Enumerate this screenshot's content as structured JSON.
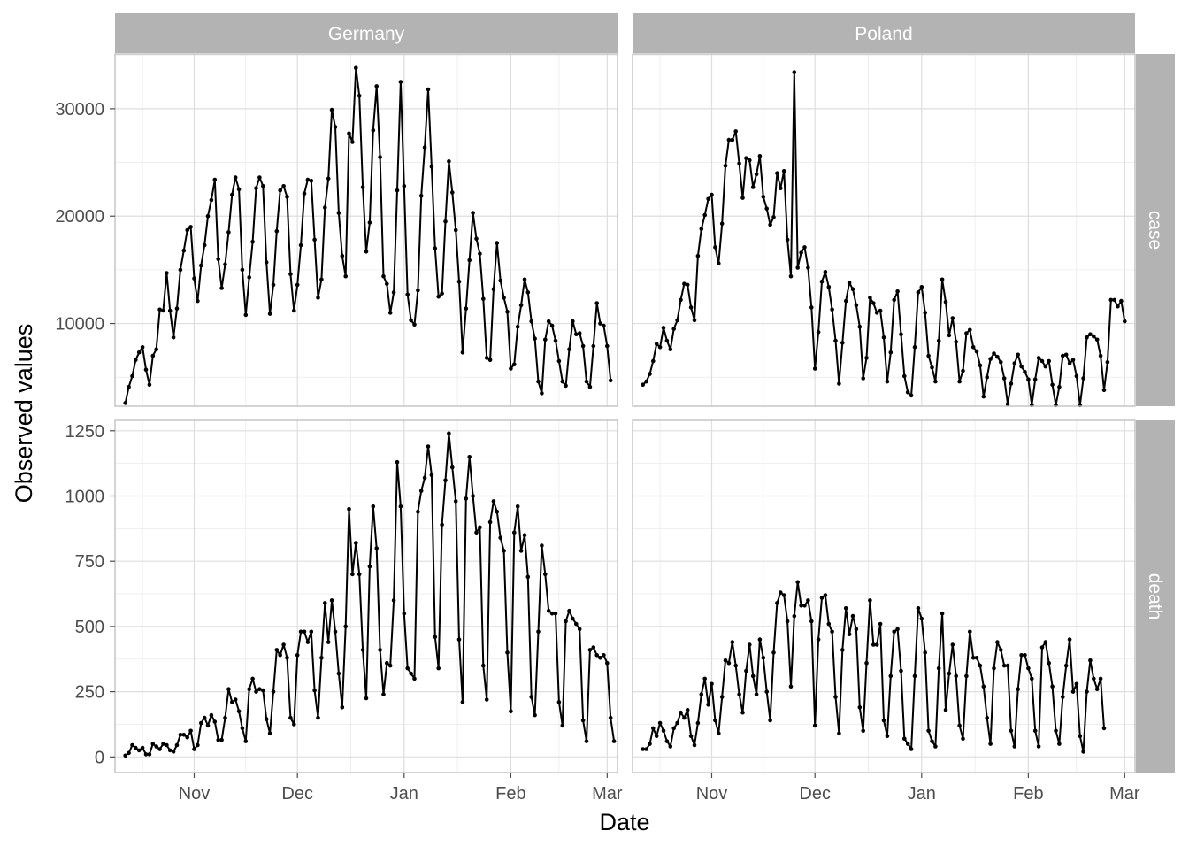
{
  "chart_data": {
    "type": "line",
    "xlabel": "Date",
    "ylabel": "Observed values",
    "facet_cols": [
      "Germany",
      "Poland"
    ],
    "facet_rows": [
      "case",
      "death"
    ],
    "x_start": "2020-10-12",
    "x_ticks": [
      {
        "label": "Nov",
        "date": "2020-11-01"
      },
      {
        "label": "Dec",
        "date": "2020-12-01"
      },
      {
        "label": "Jan",
        "date": "2021-01-01"
      },
      {
        "label": "Feb",
        "date": "2021-02-01"
      },
      {
        "label": "Mar",
        "date": "2021-03-01"
      }
    ],
    "x_range": [
      "2020-10-09",
      "2021-03-04"
    ],
    "rows": {
      "case": {
        "ylim": [
          2300,
          35100
        ],
        "y_ticks": [
          10000,
          20000,
          30000
        ],
        "y_tick_labels": [
          "10000",
          "20000",
          "30000"
        ]
      },
      "death": {
        "ylim": [
          -60,
          1290
        ],
        "y_ticks": [
          0,
          250,
          500,
          750,
          1000,
          1250
        ],
        "y_tick_labels": [
          "0",
          "250",
          "500",
          "750",
          "1000",
          "1250"
        ]
      }
    },
    "series": [
      {
        "country": "Germany",
        "variable": "case",
        "values": [
          2600,
          4100,
          5100,
          6600,
          7300,
          7800,
          5700,
          4300,
          7000,
          7600,
          11300,
          11200,
          14700,
          11200,
          8700,
          11400,
          15000,
          16800,
          18700,
          19000,
          14200,
          12100,
          15400,
          17300,
          20000,
          21500,
          23400,
          16000,
          13300,
          15500,
          18500,
          22000,
          23600,
          22500,
          15000,
          10800,
          14300,
          17600,
          22600,
          23600,
          22800,
          15700,
          10900,
          13600,
          18600,
          22400,
          22800,
          21800,
          14600,
          11200,
          13600,
          17300,
          22100,
          23400,
          23300,
          17800,
          12400,
          14100,
          20800,
          23500,
          29900,
          28300,
          20300,
          16300,
          14400,
          27700,
          26900,
          33800,
          31200,
          22700,
          16700,
          19400,
          28000,
          32100,
          25500,
          14400,
          13700,
          11000,
          12900,
          22400,
          32500,
          22800,
          12700,
          10300,
          9900,
          13100,
          21900,
          26400,
          31800,
          24600,
          17000,
          12500,
          12800,
          19500,
          25100,
          22200,
          18700,
          13900,
          7300,
          11400,
          15900,
          20300,
          17900,
          16500,
          12300,
          6800,
          6600,
          13200,
          17500,
          14000,
          12400,
          11100,
          5800,
          6200,
          9700,
          11700,
          14100,
          12900,
          10200,
          8600,
          4600,
          3500,
          8500,
          10200,
          9800,
          8400,
          6500,
          4600,
          4200,
          7600,
          10200,
          9000,
          9100,
          7900,
          4600,
          4100,
          7900,
          11900,
          10000,
          9800,
          7900,
          4700
        ]
      },
      {
        "country": "Germany",
        "variable": "death",
        "values": [
          5,
          15,
          45,
          35,
          25,
          35,
          10,
          10,
          50,
          40,
          30,
          50,
          45,
          25,
          20,
          45,
          85,
          85,
          75,
          100,
          30,
          45,
          130,
          150,
          120,
          160,
          135,
          65,
          65,
          150,
          260,
          210,
          220,
          175,
          110,
          60,
          260,
          300,
          250,
          260,
          255,
          145,
          90,
          250,
          410,
          390,
          430,
          380,
          150,
          125,
          390,
          480,
          480,
          440,
          480,
          255,
          150,
          380,
          590,
          440,
          600,
          480,
          320,
          190,
          500,
          950,
          700,
          820,
          700,
          410,
          225,
          730,
          960,
          800,
          410,
          240,
          360,
          350,
          600,
          1130,
          960,
          550,
          340,
          320,
          300,
          940,
          1020,
          1070,
          1190,
          1080,
          460,
          340,
          890,
          1060,
          1240,
          1110,
          980,
          450,
          210,
          990,
          1150,
          1000,
          860,
          880,
          350,
          220,
          900,
          980,
          940,
          840,
          790,
          400,
          175,
          860,
          960,
          790,
          850,
          690,
          230,
          160,
          480,
          810,
          700,
          560,
          550,
          550,
          210,
          120,
          520,
          560,
          530,
          510,
          490,
          140,
          60,
          410,
          420,
          390,
          380,
          390,
          360,
          150,
          60
        ]
      },
      {
        "country": "Poland",
        "variable": "case",
        "values": [
          4300,
          4600,
          5300,
          6500,
          8100,
          7800,
          9600,
          8400,
          7600,
          9500,
          10300,
          12200,
          13700,
          13600,
          11500,
          10300,
          16300,
          18800,
          20100,
          21600,
          22000,
          17100,
          15600,
          19300,
          24700,
          27100,
          27100,
          27900,
          24900,
          21700,
          25400,
          25200,
          22700,
          23900,
          25600,
          21800,
          20700,
          19200,
          19900,
          24000,
          22600,
          24200,
          17800,
          14400,
          33400,
          15200,
          16600,
          17100,
          15200,
          11500,
          5800,
          9200,
          13900,
          14800,
          13400,
          11300,
          8400,
          4400,
          8200,
          12100,
          13800,
          13200,
          11700,
          9700,
          4900,
          6800,
          12400,
          11900,
          11000,
          11200,
          8700,
          4600,
          7300,
          12200,
          13000,
          9000,
          5100,
          3600,
          3300,
          7800,
          12900,
          13400,
          11000,
          7000,
          5900,
          4600,
          8400,
          14100,
          12000,
          8900,
          10500,
          8300,
          4600,
          5600,
          9100,
          9400,
          7800,
          7400,
          6100,
          3200,
          5000,
          6700,
          7200,
          6900,
          6400,
          4900,
          2500,
          4400,
          6300,
          7100,
          6000,
          5500,
          4800,
          2400,
          4800,
          6800,
          6500,
          6000,
          6500,
          4300,
          2400,
          4100,
          7000,
          7100,
          6300,
          6600,
          5100,
          2400,
          4900,
          8700,
          9000,
          8800,
          8500,
          7000,
          3800,
          6400,
          12200,
          12200,
          11600,
          12100,
          10200
        ]
      },
      {
        "country": "Poland",
        "variable": "death",
        "values": [
          30,
          30,
          50,
          110,
          80,
          130,
          100,
          60,
          40,
          110,
          130,
          170,
          150,
          180,
          80,
          45,
          130,
          240,
          300,
          200,
          280,
          140,
          90,
          230,
          370,
          360,
          440,
          350,
          240,
          170,
          330,
          430,
          310,
          240,
          450,
          380,
          250,
          140,
          400,
          590,
          630,
          620,
          520,
          270,
          540,
          670,
          580,
          580,
          600,
          520,
          120,
          450,
          610,
          620,
          510,
          480,
          230,
          90,
          410,
          570,
          470,
          540,
          490,
          190,
          100,
          360,
          600,
          430,
          430,
          510,
          140,
          80,
          310,
          480,
          490,
          330,
          70,
          50,
          30,
          310,
          570,
          530,
          400,
          100,
          60,
          40,
          340,
          550,
          180,
          320,
          430,
          310,
          120,
          70,
          310,
          480,
          380,
          380,
          350,
          270,
          150,
          50,
          340,
          440,
          410,
          350,
          350,
          100,
          40,
          260,
          390,
          390,
          340,
          300,
          100,
          40,
          420,
          440,
          360,
          270,
          100,
          50,
          230,
          350,
          450,
          250,
          280,
          80,
          20,
          250,
          370,
          300,
          260,
          300,
          110
        ]
      }
    ]
  }
}
